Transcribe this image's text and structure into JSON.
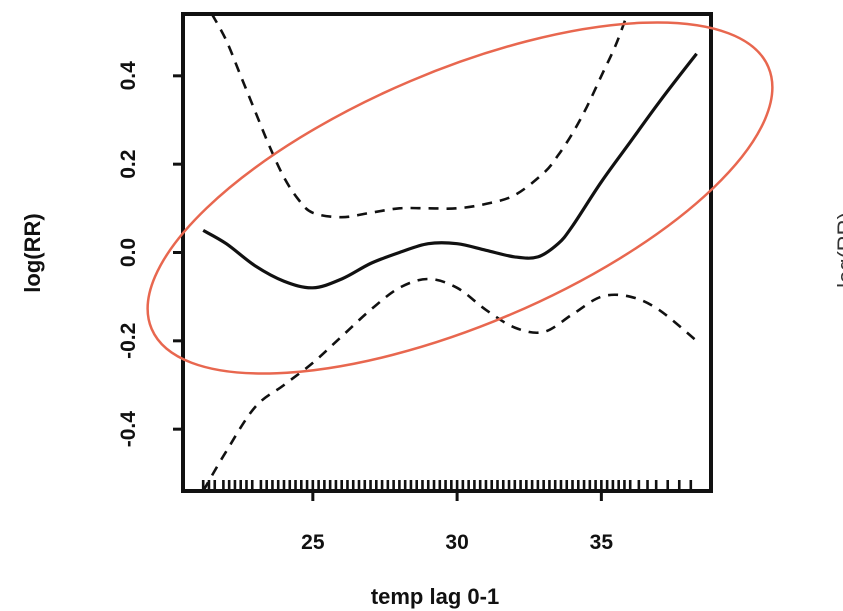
{
  "chart_data": {
    "type": "line",
    "xlabel": "temp lag 0-1",
    "ylabel": "log(RR)",
    "neighbor_ylabel": "log(RR)",
    "xlim": [
      20.5,
      38.8
    ],
    "ylim": [
      -0.54,
      0.54
    ],
    "xticks": [
      25,
      30,
      35
    ],
    "yticks": [
      -0.4,
      -0.2,
      0.0,
      0.2,
      0.4
    ],
    "ytick_labels": [
      "-0.4",
      "-0.2",
      "0.0",
      "0.2",
      "0.4"
    ],
    "grid": false,
    "series": [
      {
        "role": "estimate",
        "style": "solid",
        "x": [
          21.2,
          22,
          23,
          24,
          25,
          26,
          27,
          28,
          29,
          30,
          31,
          32,
          32.8,
          33.5,
          34,
          35,
          36,
          37,
          38.3
        ],
        "y": [
          0.05,
          0.02,
          -0.03,
          -0.065,
          -0.08,
          -0.06,
          -0.025,
          0.0,
          0.02,
          0.02,
          0.005,
          -0.01,
          -0.01,
          0.02,
          0.06,
          0.16,
          0.25,
          0.34,
          0.45
        ]
      },
      {
        "role": "upper",
        "style": "dashed",
        "x": [
          21.5,
          22,
          22.5,
          23,
          23.5,
          24,
          24.5,
          25,
          26,
          27,
          28,
          29,
          30,
          31,
          32,
          33,
          33.5,
          34,
          34.5,
          35,
          35.5,
          35.9
        ],
        "y": [
          0.54,
          0.48,
          0.4,
          0.32,
          0.24,
          0.17,
          0.12,
          0.09,
          0.08,
          0.09,
          0.1,
          0.1,
          0.1,
          0.11,
          0.13,
          0.18,
          0.22,
          0.27,
          0.33,
          0.4,
          0.47,
          0.54
        ]
      },
      {
        "role": "lower",
        "style": "dashed",
        "x": [
          21.2,
          22,
          23,
          24,
          25,
          26,
          27,
          28,
          29,
          30,
          31,
          32,
          33,
          34,
          35,
          36,
          37,
          38.3
        ],
        "y": [
          -0.54,
          -0.45,
          -0.35,
          -0.3,
          -0.25,
          -0.19,
          -0.13,
          -0.08,
          -0.06,
          -0.08,
          -0.13,
          -0.17,
          -0.18,
          -0.14,
          -0.1,
          -0.1,
          -0.13,
          -0.2
        ]
      }
    ],
    "rug": [
      21.2,
      21.4,
      21.6,
      21.9,
      22.1,
      22.3,
      22.5,
      22.7,
      22.9,
      23.2,
      23.4,
      23.6,
      23.8,
      24.0,
      24.2,
      24.4,
      24.6,
      24.8,
      25.0,
      25.2,
      25.4,
      25.6,
      25.8,
      26.0,
      26.2,
      26.4,
      26.6,
      26.8,
      27.0,
      27.2,
      27.4,
      27.6,
      27.8,
      28.0,
      28.2,
      28.4,
      28.6,
      28.8,
      29.0,
      29.2,
      29.4,
      29.6,
      29.8,
      30.0,
      30.2,
      30.4,
      30.6,
      30.8,
      31.0,
      31.2,
      31.4,
      31.6,
      31.8,
      32.0,
      32.2,
      32.4,
      32.6,
      32.8,
      33.0,
      33.2,
      33.4,
      33.6,
      33.8,
      34.0,
      34.2,
      34.4,
      34.6,
      34.8,
      35.0,
      35.2,
      35.4,
      35.6,
      35.8,
      36.0,
      36.3,
      36.6,
      36.9,
      37.3,
      37.7,
      38.1
    ],
    "annotation": {
      "shape": "ellipse",
      "color": "#e8674f"
    }
  }
}
